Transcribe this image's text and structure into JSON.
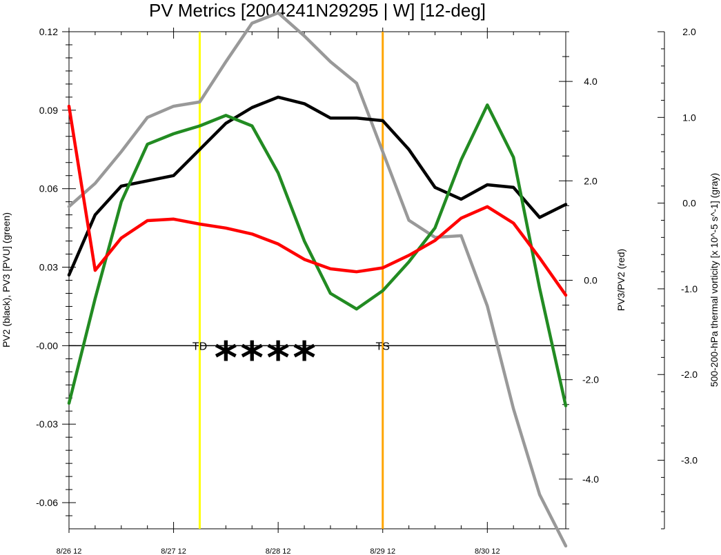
{
  "chart_data": {
    "type": "line",
    "title": "PV Metrics [2004241N29295 | W] [12-deg]",
    "x": [
      0,
      12,
      24,
      36,
      48,
      60,
      72,
      84,
      96,
      108,
      120,
      132,
      144,
      156,
      168,
      180,
      192,
      204,
      216,
      228
    ],
    "x_ticks": [
      {
        "x": 0,
        "label": "8/26 12"
      },
      {
        "x": 48,
        "label": "8/27 12"
      },
      {
        "x": 96,
        "label": "8/28 12"
      },
      {
        "x": 144,
        "label": "8/29 12"
      },
      {
        "x": 192,
        "label": "8/30 12"
      }
    ],
    "left_axis": {
      "label": "PV2 (black), PV3 [PVU] (green)",
      "ylim": [
        -0.07,
        0.12
      ],
      "ticks": [
        {
          "v": 0.12,
          "label": "0.12"
        },
        {
          "v": 0.09,
          "label": "0.09"
        },
        {
          "v": 0.06,
          "label": "0.06"
        },
        {
          "v": 0.03,
          "label": "0.03"
        },
        {
          "v": 0.0,
          "label": "-0.00"
        },
        {
          "v": -0.03,
          "label": "-0.03"
        },
        {
          "v": -0.06,
          "label": "-0.06"
        }
      ]
    },
    "right_axis": {
      "label": "PV3/PV2 (red)",
      "ylim": [
        -5.0,
        5.0
      ],
      "ticks": [
        {
          "v": 4.0,
          "label": "4.0"
        },
        {
          "v": 2.0,
          "label": "2.0"
        },
        {
          "v": 0.0,
          "label": "0.0"
        },
        {
          "v": -2.0,
          "label": "-2.0"
        },
        {
          "v": -4.0,
          "label": "-4.0"
        }
      ]
    },
    "far_right_axis": {
      "label": "500-200-hPa thermal vorticity [x 10^-5 s^-1] (gray)",
      "ylim": [
        -3.8,
        2.0
      ],
      "ticks": [
        {
          "v": 2.0,
          "label": "2.0"
        },
        {
          "v": 1.0,
          "label": "1.0"
        },
        {
          "v": 0.0,
          "label": "0.0"
        },
        {
          "v": -1.0,
          "label": "-1.0"
        },
        {
          "v": -2.0,
          "label": "-2.0"
        },
        {
          "v": -3.0,
          "label": "-3.0"
        }
      ]
    },
    "series": [
      {
        "color": "#999999",
        "axis": "far_right",
        "values": [
          -0.04,
          0.23,
          0.6,
          1.0,
          1.13,
          1.18,
          1.65,
          2.1,
          2.22,
          1.95,
          1.65,
          1.4,
          0.6,
          -0.2,
          -0.4,
          -0.38,
          -1.2,
          -2.4,
          -3.4,
          -4.0
        ]
      },
      {
        "color": "#000000",
        "axis": "left",
        "values": [
          0.027,
          0.05,
          0.061,
          0.063,
          0.065,
          0.075,
          0.085,
          0.091,
          0.095,
          0.0925,
          0.087,
          0.087,
          0.086,
          0.075,
          0.0605,
          0.056,
          0.0615,
          0.0605,
          0.049,
          0.054
        ]
      },
      {
        "color": "#228b22",
        "axis": "left",
        "values": [
          -0.022,
          0.018,
          0.055,
          0.077,
          0.081,
          0.084,
          0.088,
          0.084,
          0.066,
          0.04,
          0.02,
          0.014,
          0.021,
          0.032,
          0.045,
          0.071,
          0.092,
          0.072,
          0.022,
          -0.023
        ]
      },
      {
        "color": "#ff0000",
        "axis": "right",
        "values": [
          3.5,
          0.2,
          0.85,
          1.2,
          1.23,
          1.13,
          1.05,
          0.93,
          0.73,
          0.42,
          0.23,
          0.17,
          0.25,
          0.5,
          0.8,
          1.25,
          1.48,
          1.15,
          0.45,
          -0.3
        ]
      }
    ],
    "vertical_lines": [
      {
        "x": 60,
        "color": "#ffff00",
        "label": "TD"
      },
      {
        "x": 144,
        "color": "#ffa500",
        "label": "TS"
      }
    ],
    "markers": {
      "symbol": "*",
      "x": [
        72,
        84,
        96,
        108
      ]
    },
    "zero_line": true,
    "grid": false
  }
}
